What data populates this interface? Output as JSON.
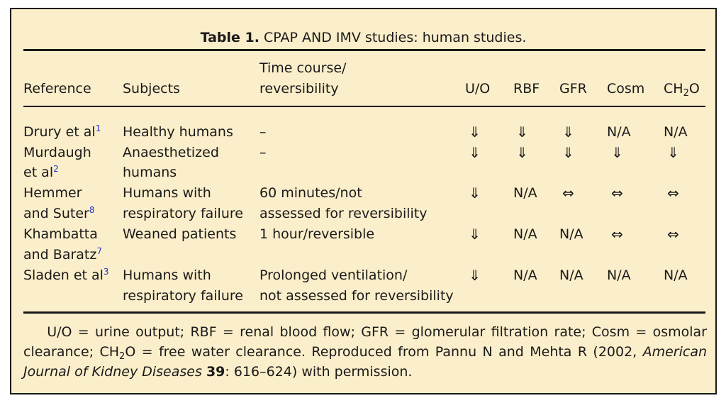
{
  "caption": {
    "label": "Table 1.",
    "text": "CPAP AND IMV studies: human studies."
  },
  "columns": {
    "reference": "Reference",
    "subjects": "Subjects",
    "time_line1": "Time course/",
    "time_line2": "reversibility",
    "uo": "U/O",
    "rbf": "RBF",
    "gfr": "GFR",
    "cosm": "Cosm",
    "ch2o_ch": "CH",
    "ch2o_sub": "2",
    "ch2o_o": "O"
  },
  "rows": [
    {
      "ref_line1": "Drury et al",
      "ref_line2": "",
      "ref_sup": "1",
      "subj_line1": "Healthy humans",
      "subj_line2": "",
      "time_line1": "–",
      "time_line2": "",
      "uo": "⇓",
      "rbf": "⇓",
      "gfr": "⇓",
      "cosm": "N/A",
      "ch2o": "N/A"
    },
    {
      "ref_line1": "Murdaugh",
      "ref_line2": "et al",
      "ref_sup": "2",
      "subj_line1": "Anaesthetized",
      "subj_line2": "humans",
      "time_line1": "–",
      "time_line2": "",
      "uo": "⇓",
      "rbf": "⇓",
      "gfr": "⇓",
      "cosm": "⇓",
      "ch2o": "⇓"
    },
    {
      "ref_line1": "Hemmer",
      "ref_line2": "and Suter",
      "ref_sup": "8",
      "subj_line1": "Humans with",
      "subj_line2": "respiratory failure",
      "time_line1": "60 minutes/not",
      "time_line2": "assessed for reversibility",
      "uo": "⇓",
      "rbf": "N/A",
      "gfr": "⇔",
      "cosm": "⇔",
      "ch2o": "⇔"
    },
    {
      "ref_line1": "Khambatta",
      "ref_line2": "and Baratz",
      "ref_sup": "7",
      "subj_line1": "Weaned patients",
      "subj_line2": "",
      "time_line1": "1 hour/reversible",
      "time_line2": "",
      "uo": "⇓",
      "rbf": "N/A",
      "gfr": "N/A",
      "cosm": "⇔",
      "ch2o": "⇔"
    },
    {
      "ref_line1": "Sladen et al",
      "ref_line2": "",
      "ref_sup": "3",
      "subj_line1": "Humans with",
      "subj_line2": "respiratory failure",
      "time_line1": "Prolonged ventilation/",
      "time_line2": "not assessed for reversibility",
      "uo": "⇓",
      "rbf": "N/A",
      "gfr": "N/A",
      "cosm": "N/A",
      "ch2o": "N/A"
    }
  ],
  "footnote": {
    "part1": "U/O = urine output; RBF = renal blood flow; GFR = glomerular filtration rate; Cosm = osmolar clearance; CH",
    "sub2": "2",
    "part2": "O = free water clearance. Reproduced from Pannu N and Mehta R (2002, ",
    "journal": "American Journal of Kidney Diseases",
    "volume": "39",
    "pages": ": 616–624) with permission."
  }
}
